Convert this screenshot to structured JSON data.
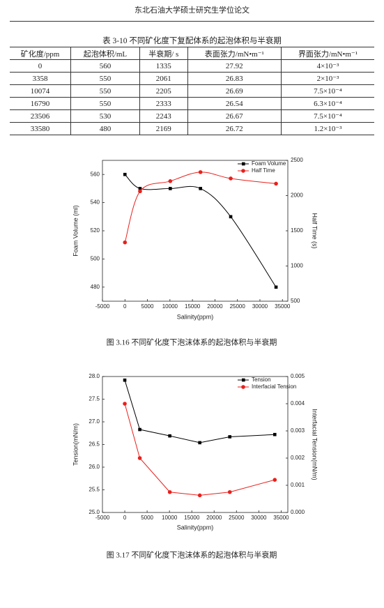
{
  "header": {
    "title": "东北石油大学硕士研究生学位论文"
  },
  "table": {
    "caption": "表 3-10 不同矿化度下复配体系的起泡体积与半衰期",
    "columns": [
      "矿化度/ppm",
      "起泡体积/mL",
      "半衰期/ s",
      "表面张力/mN•m⁻¹",
      "界面张力/mN•m⁻¹"
    ],
    "rows": [
      [
        "0",
        "560",
        "1335",
        "27.92",
        "4×10⁻³"
      ],
      [
        "3358",
        "550",
        "2061",
        "26.83",
        "2×10⁻³"
      ],
      [
        "10074",
        "550",
        "2205",
        "26.69",
        "7.5×10⁻⁴"
      ],
      [
        "16790",
        "550",
        "2333",
        "26.54",
        "6.3×10⁻⁴"
      ],
      [
        "23506",
        "530",
        "2243",
        "26.67",
        "7.5×10⁻⁴"
      ],
      [
        "33580",
        "480",
        "2169",
        "26.72",
        "1.2×10⁻³"
      ]
    ]
  },
  "chart_data": [
    {
      "type": "line",
      "smooth": true,
      "caption": "图 3.16  不同矿化度下泡沫体系的起泡体积与半衰期",
      "x_label": "Salinity(ppm)",
      "y_label": "Foam Volume (ml)",
      "y2_label": "Half Time (s)",
      "x": [
        0,
        3358,
        10074,
        16790,
        23506,
        33580
      ],
      "xlim": [
        -5000,
        36200
      ],
      "xticks": [
        -5000,
        0,
        5000,
        10000,
        15000,
        20000,
        25000,
        30000,
        35000
      ],
      "ylim": [
        470,
        570
      ],
      "yticks": [
        480,
        500,
        520,
        540,
        560
      ],
      "y2lim": [
        500,
        2500
      ],
      "y2ticks": [
        500,
        1000,
        1500,
        2000,
        2500
      ],
      "legend": "upper right",
      "series": [
        {
          "name": "Foam Volume",
          "color": "#000000",
          "marker": "square",
          "values": [
            560,
            550,
            550,
            550,
            530,
            480
          ]
        },
        {
          "name": "Half Time",
          "color": "#e8201c",
          "marker": "circle",
          "axis": "y2",
          "values": [
            1335,
            2061,
            2205,
            2333,
            2243,
            2169
          ]
        }
      ]
    },
    {
      "type": "line",
      "smooth": false,
      "caption": "图 3.17  不同矿化度下泡沫体系的起泡体积与半衰期",
      "x_label": "Salinity(ppm)",
      "y_label": "Tension(mN/m)",
      "y2_label": "Interfacial Tension(mN/m)",
      "x": [
        0,
        3358,
        10074,
        16790,
        23506,
        33580
      ],
      "xlim": [
        -5000,
        36500
      ],
      "xticks": [
        -5000,
        0,
        5000,
        10000,
        15000,
        20000,
        25000,
        30000,
        35000
      ],
      "ylim": [
        25,
        28
      ],
      "yticks": [
        {
          "value": 25,
          "label": "25.0"
        },
        25.5,
        {
          "value": 26,
          "label": "26.0"
        },
        26.5,
        {
          "value": 27,
          "label": "27.0"
        },
        27.5,
        {
          "value": 28,
          "label": "28.0"
        }
      ],
      "y2lim": [
        0,
        0.005
      ],
      "y2ticks": [
        {
          "value": 0,
          "label": "0.000"
        },
        {
          "value": 0.001,
          "label": "0.001"
        },
        {
          "value": 0.002,
          "label": "0.002"
        },
        {
          "value": 0.003,
          "label": "0.003"
        },
        {
          "value": 0.004,
          "label": "0.004"
        },
        {
          "value": 0.005,
          "label": "0.005"
        }
      ],
      "legend": "upper right",
      "series": [
        {
          "name": "Tension",
          "color": "#000000",
          "marker": "square",
          "values": [
            27.92,
            26.83,
            26.69,
            26.54,
            26.67,
            26.72
          ]
        },
        {
          "name": "Interfacial Tension",
          "color": "#e8201c",
          "marker": "circle",
          "axis": "y2",
          "values": [
            0.004,
            0.002,
            0.00075,
            0.00063,
            0.00075,
            0.0012
          ]
        }
      ]
    }
  ]
}
